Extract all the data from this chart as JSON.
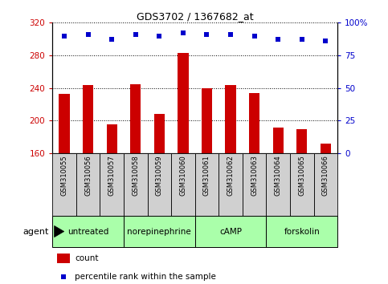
{
  "title": "GDS3702 / 1367682_at",
  "samples": [
    "GSM310055",
    "GSM310056",
    "GSM310057",
    "GSM310058",
    "GSM310059",
    "GSM310060",
    "GSM310061",
    "GSM310062",
    "GSM310063",
    "GSM310064",
    "GSM310065",
    "GSM310066"
  ],
  "bar_values": [
    233,
    244,
    196,
    245,
    208,
    283,
    240,
    244,
    234,
    192,
    190,
    172
  ],
  "percentile_values": [
    90,
    91,
    87,
    91,
    90,
    92,
    91,
    91,
    90,
    87,
    87,
    86
  ],
  "ylim_left": [
    160,
    320
  ],
  "ylim_right": [
    0,
    100
  ],
  "yticks_left": [
    160,
    200,
    240,
    280,
    320
  ],
  "yticks_right": [
    0,
    25,
    50,
    75,
    100
  ],
  "bar_color": "#cc0000",
  "dot_color": "#0000cc",
  "grid_color": "#000000",
  "agents": [
    {
      "label": "untreated",
      "start": 0,
      "end": 3
    },
    {
      "label": "norepinephrine",
      "start": 3,
      "end": 6
    },
    {
      "label": "cAMP",
      "start": 6,
      "end": 9
    },
    {
      "label": "forskolin",
      "start": 9,
      "end": 12
    }
  ],
  "agent_bg_color": "#aaffaa",
  "sample_bg_color": "#d0d0d0",
  "legend_count_color": "#cc0000",
  "legend_pct_color": "#0000cc",
  "left_tick_color": "#cc0000",
  "right_tick_color": "#0000cc",
  "figsize": [
    4.83,
    3.54
  ],
  "dpi": 100
}
